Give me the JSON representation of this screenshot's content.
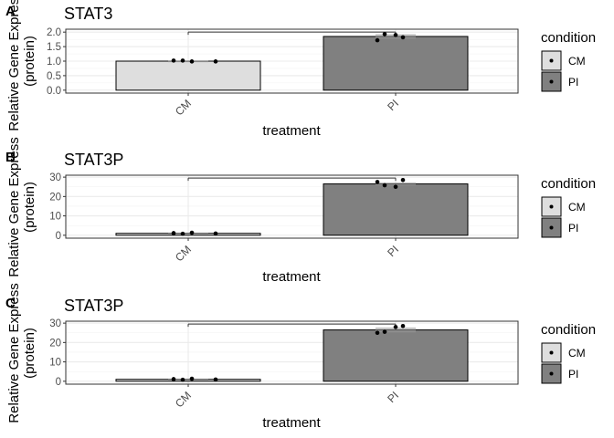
{
  "chart_data": [
    {
      "type": "bar",
      "panel_letter": "A",
      "title": "STAT3",
      "xlabel": "treatment",
      "ylabel_lines": [
        "Relative Gene Express",
        "(protein)"
      ],
      "categories": [
        "CM",
        "PI"
      ],
      "values": [
        1.0,
        1.85
      ],
      "error": [
        0.0,
        0.08
      ],
      "points": [
        [
          1.02,
          1.02,
          0.99,
          0.99
        ],
        [
          1.72,
          1.9,
          1.82,
          1.93
        ]
      ],
      "ylim": [
        -0.1,
        2.1
      ],
      "yticks": [
        0.0,
        0.5,
        1.0,
        1.5,
        2.0
      ],
      "ytick_labels": [
        "0.0",
        "0.5",
        "1.0",
        "1.5",
        "2.0"
      ],
      "bracket_y": 2.0,
      "legend_title": "condition",
      "legend": [
        "CM",
        "PI"
      ],
      "colors": {
        "CM": "#dedede",
        "PI": "#808080"
      }
    },
    {
      "type": "bar",
      "panel_letter": "B",
      "title": "STAT3P",
      "xlabel": "treatment",
      "ylabel_lines": [
        "Relative Gene Express",
        "(protein)"
      ],
      "categories": [
        "CM",
        "PI"
      ],
      "values": [
        1.0,
        26.5
      ],
      "error": [
        0.2,
        0.8
      ],
      "points": [
        [
          1.1,
          0.8,
          1.3,
          0.9
        ],
        [
          27.5,
          25.0,
          28.5,
          25.8
        ]
      ],
      "ylim": [
        -1.5,
        31
      ],
      "yticks": [
        0,
        10,
        20,
        30
      ],
      "ytick_labels": [
        "0",
        "10",
        "20",
        "30"
      ],
      "bracket_y": 29.5,
      "legend_title": "condition",
      "legend": [
        "CM",
        "PI"
      ],
      "colors": {
        "CM": "#dedede",
        "PI": "#808080"
      }
    },
    {
      "type": "bar",
      "panel_letter": "C",
      "title": "STAT3P",
      "xlabel": "treatment",
      "ylabel_lines": [
        "Relative Gene Express",
        "(protein)"
      ],
      "categories": [
        "CM",
        "PI"
      ],
      "values": [
        1.0,
        26.5
      ],
      "error": [
        0.3,
        1.3
      ],
      "points": [
        [
          1.1,
          0.8,
          1.3,
          0.9
        ],
        [
          25.0,
          28.0,
          28.5,
          25.5
        ]
      ],
      "ylim": [
        -1.5,
        31
      ],
      "yticks": [
        0,
        10,
        20,
        30
      ],
      "ytick_labels": [
        "0",
        "10",
        "20",
        "30"
      ],
      "bracket_y": 29.5,
      "legend_title": "condition",
      "legend": [
        "CM",
        "PI"
      ],
      "colors": {
        "CM": "#dedede",
        "PI": "#808080"
      }
    }
  ]
}
